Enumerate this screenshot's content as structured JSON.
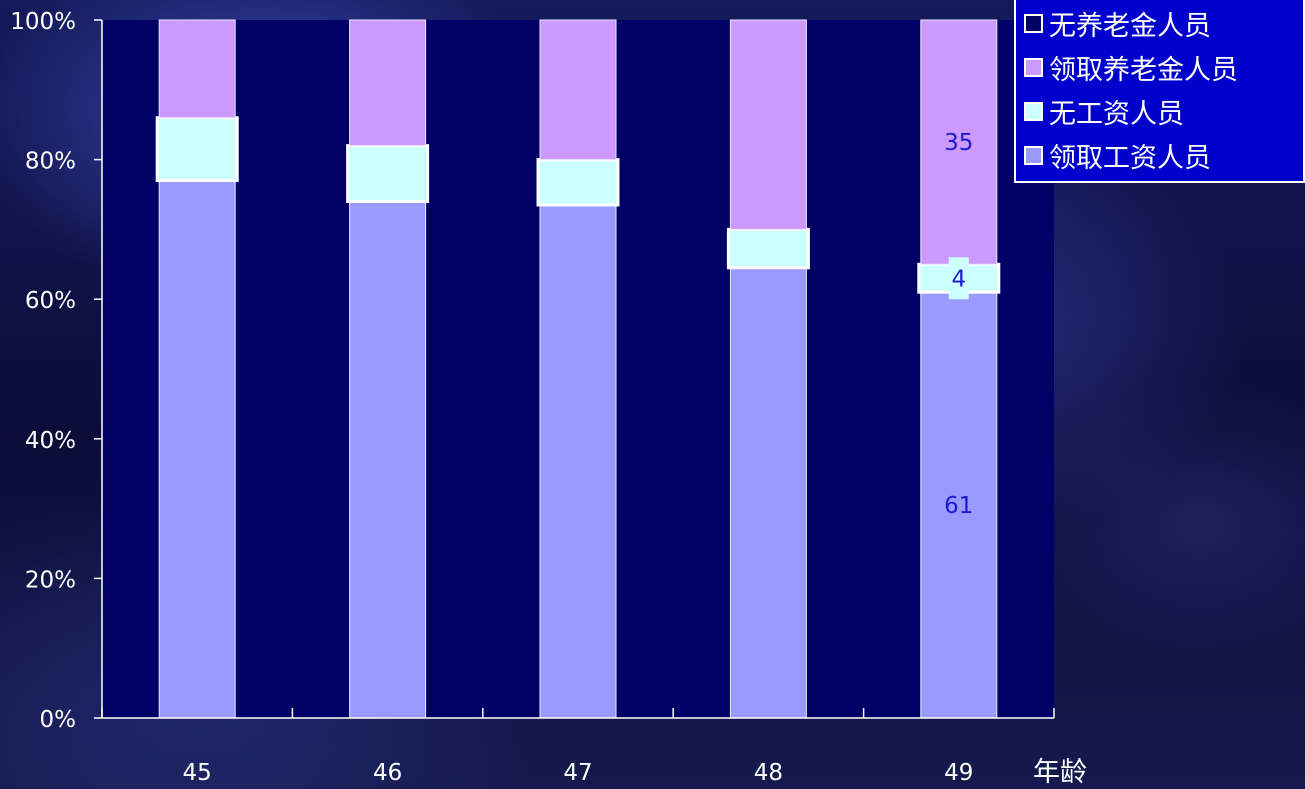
{
  "chart_data": {
    "type": "bar",
    "stacked": true,
    "percent": true,
    "xlabel": "年龄",
    "categories": [
      "45",
      "46",
      "47",
      "48",
      "49"
    ],
    "y_ticks": [
      "0%",
      "20%",
      "40%",
      "60%",
      "80%",
      "100%"
    ],
    "ylim": [
      0,
      100
    ],
    "grid": false,
    "legend_position": "top-right",
    "series": [
      {
        "name": "领取工资人员",
        "values": [
          77,
          74,
          73.5,
          64.5,
          61
        ],
        "color": "#9999ff"
      },
      {
        "name": "无工资人员",
        "values": [
          9,
          8,
          6.5,
          5.5,
          4
        ],
        "color": "#ccffff"
      },
      {
        "name": "领取养老金人员",
        "values": [
          14,
          18,
          20,
          30,
          35
        ],
        "color": "#cc99ff"
      },
      {
        "name": "无养老金人员",
        "values": [
          0,
          0,
          0,
          0,
          0
        ],
        "color": "#000066"
      }
    ],
    "data_labels": [
      {
        "category": "49",
        "series": "领取养老金人员",
        "text": "35"
      },
      {
        "category": "49",
        "series": "无工资人员",
        "text": "4"
      },
      {
        "category": "49",
        "series": "领取工资人员",
        "text": "61"
      }
    ],
    "legend_order": [
      "无养老金人员",
      "领取养老金人员",
      "无工资人员",
      "领取工资人员"
    ],
    "colors": {
      "plot_background": "#000066",
      "legend_background": "#0000cc",
      "axis": "#ffffff"
    }
  }
}
